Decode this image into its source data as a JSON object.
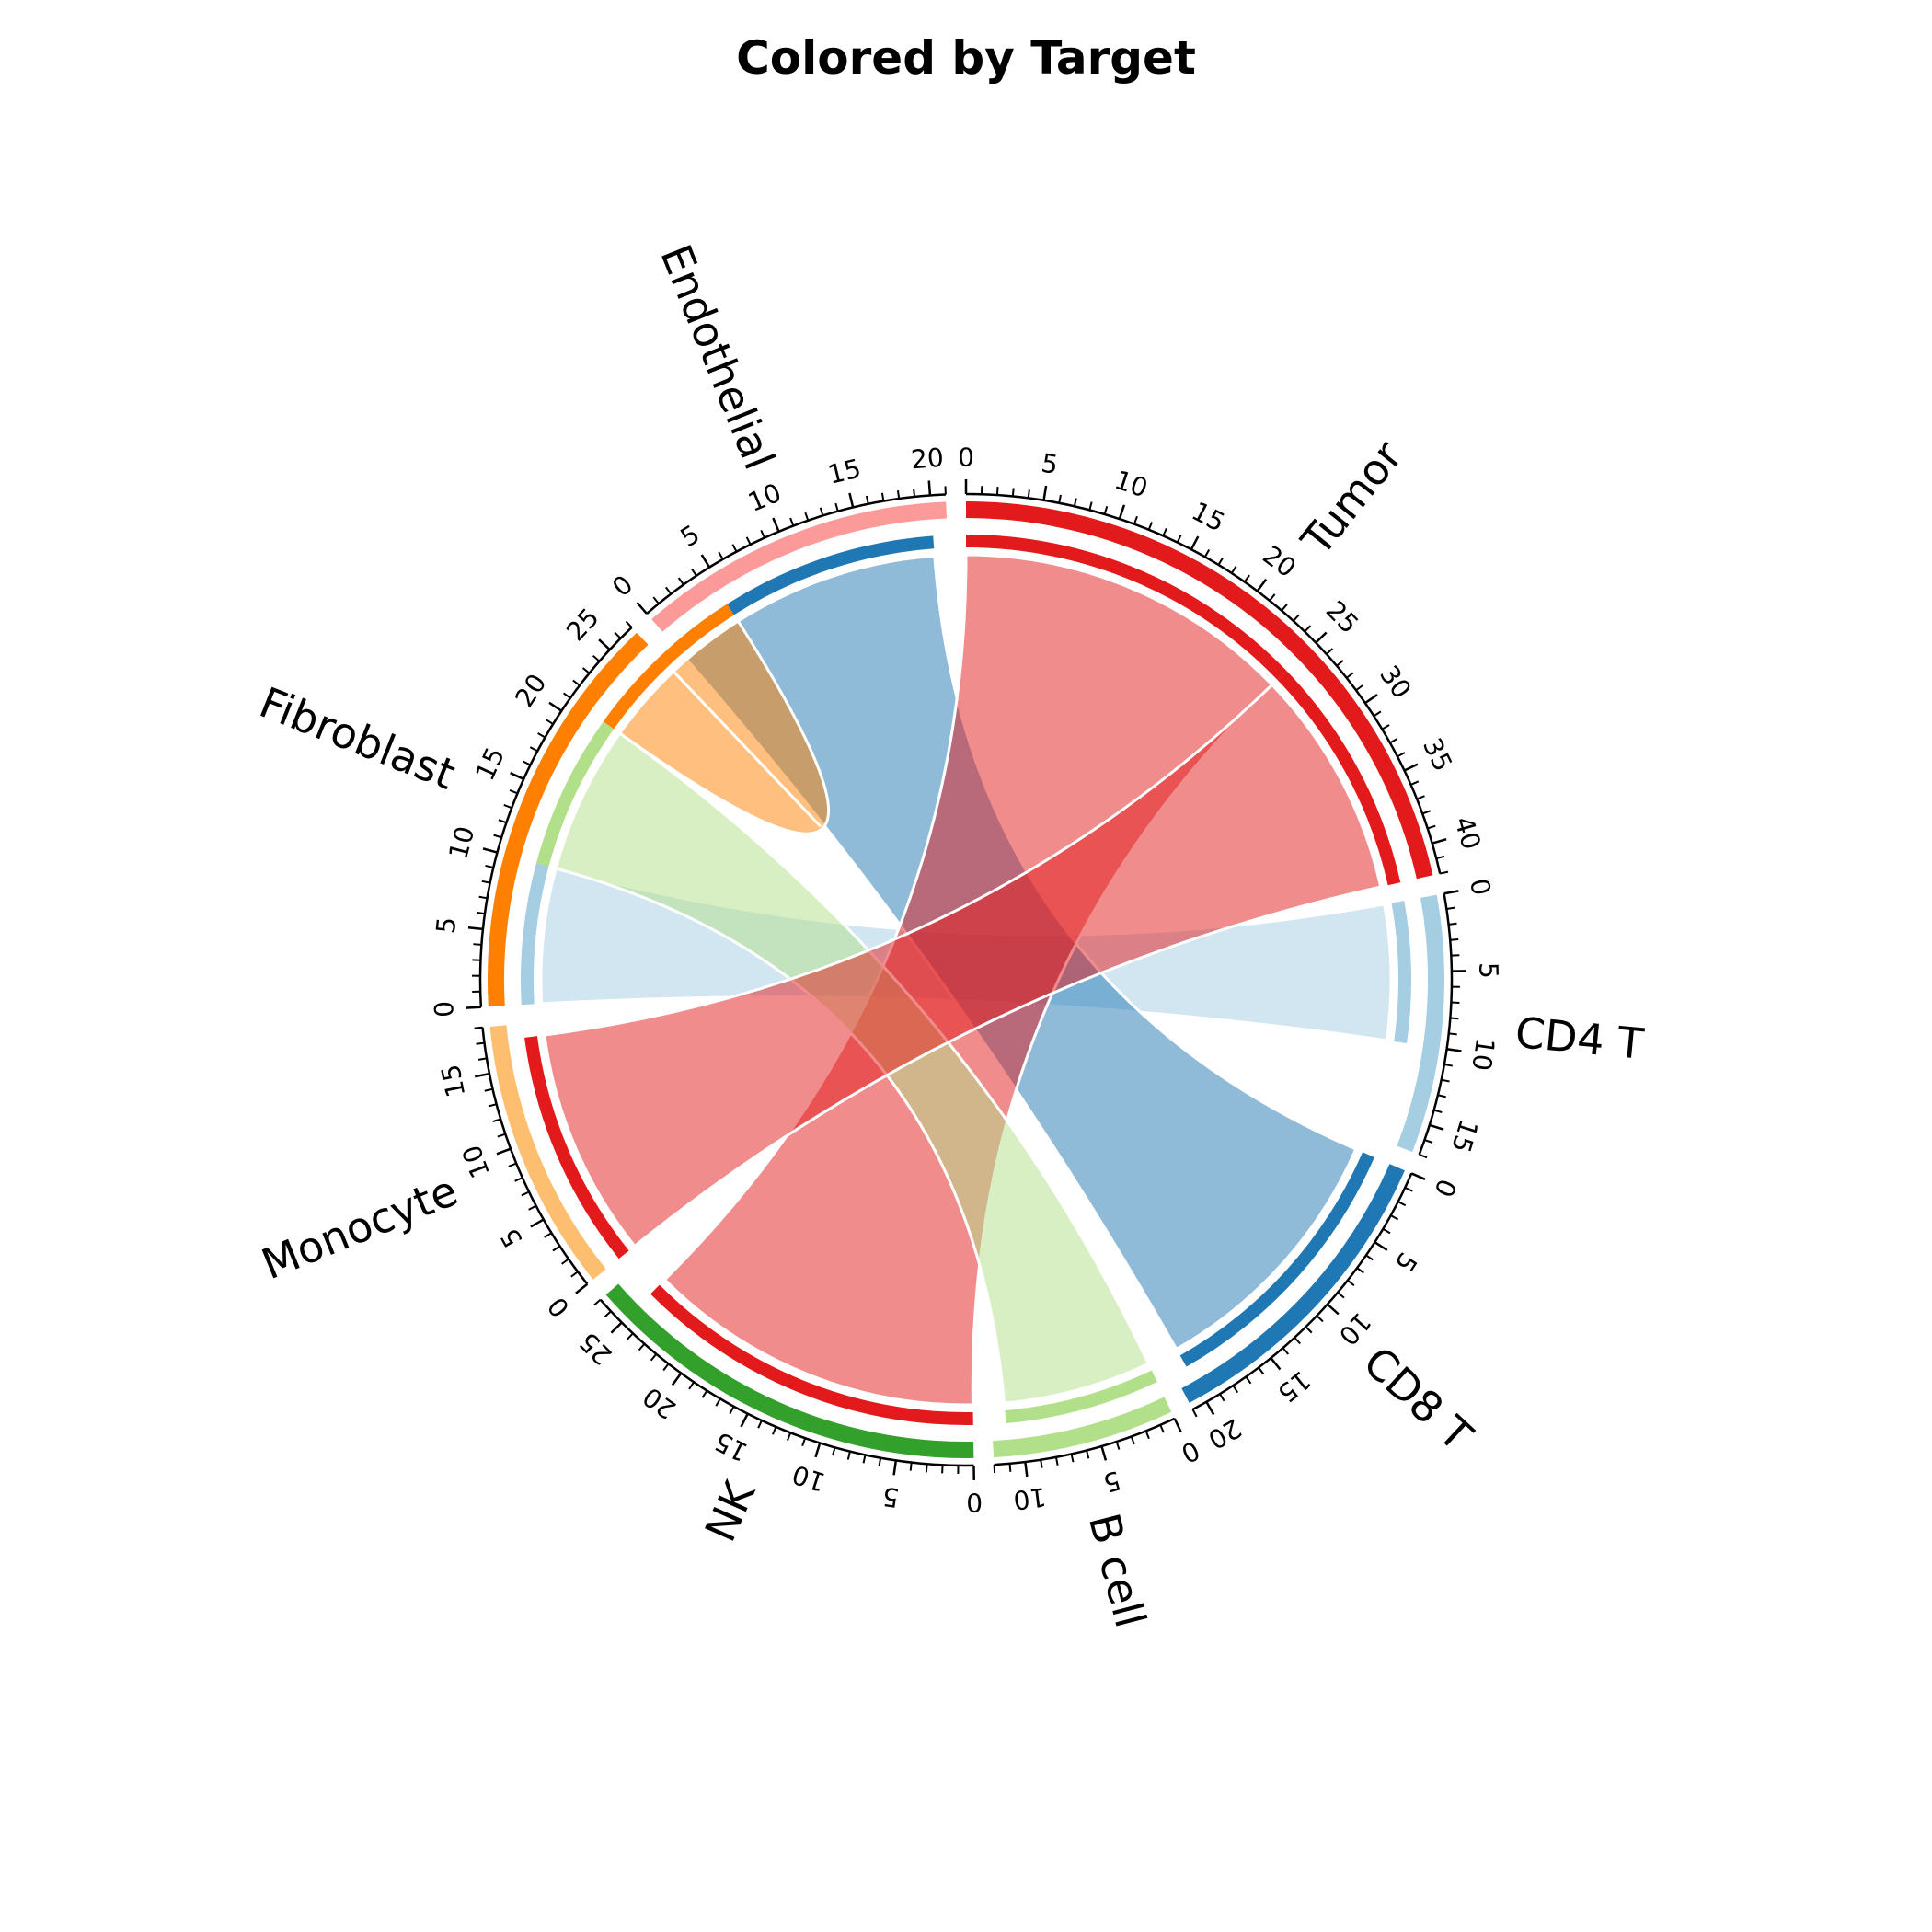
{
  "chart_data": {
    "type": "chord",
    "title": "Colored by Target",
    "color_by": "target",
    "sectors": [
      {
        "name": "Tumor",
        "total": 42,
        "color": "#e31a1c"
      },
      {
        "name": "CD4 T",
        "total": 17,
        "color": "#a6cee3"
      },
      {
        "name": "CD8 T",
        "total": 21,
        "color": "#1f78b4"
      },
      {
        "name": "B cell",
        "total": 12,
        "color": "#b2df8a"
      },
      {
        "name": "NK",
        "total": 27,
        "color": "#33a02c"
      },
      {
        "name": "Monocyte",
        "total": 18,
        "color": "#fdbf6f"
      },
      {
        "name": "Fibroblast",
        "total": 27,
        "color": "#ff7f00"
      },
      {
        "name": "Endothelial",
        "total": 21,
        "color": "#fb9a99"
      }
    ],
    "links": [
      {
        "source": "Fibroblast",
        "target": "CD4 T",
        "value": 10
      },
      {
        "source": "Endothelial",
        "target": "CD8 T",
        "value": 20
      },
      {
        "source": "NK",
        "target": "Tumor",
        "value": 25
      },
      {
        "source": "Fibroblast",
        "target": "B cell",
        "value": 11
      },
      {
        "source": "Monocyte",
        "target": "Tumor",
        "value": 17
      },
      {
        "source": "Fibroblast",
        "target": "Fibroblast",
        "value": 6
      }
    ],
    "tick_step": 1,
    "label_step": 5
  }
}
